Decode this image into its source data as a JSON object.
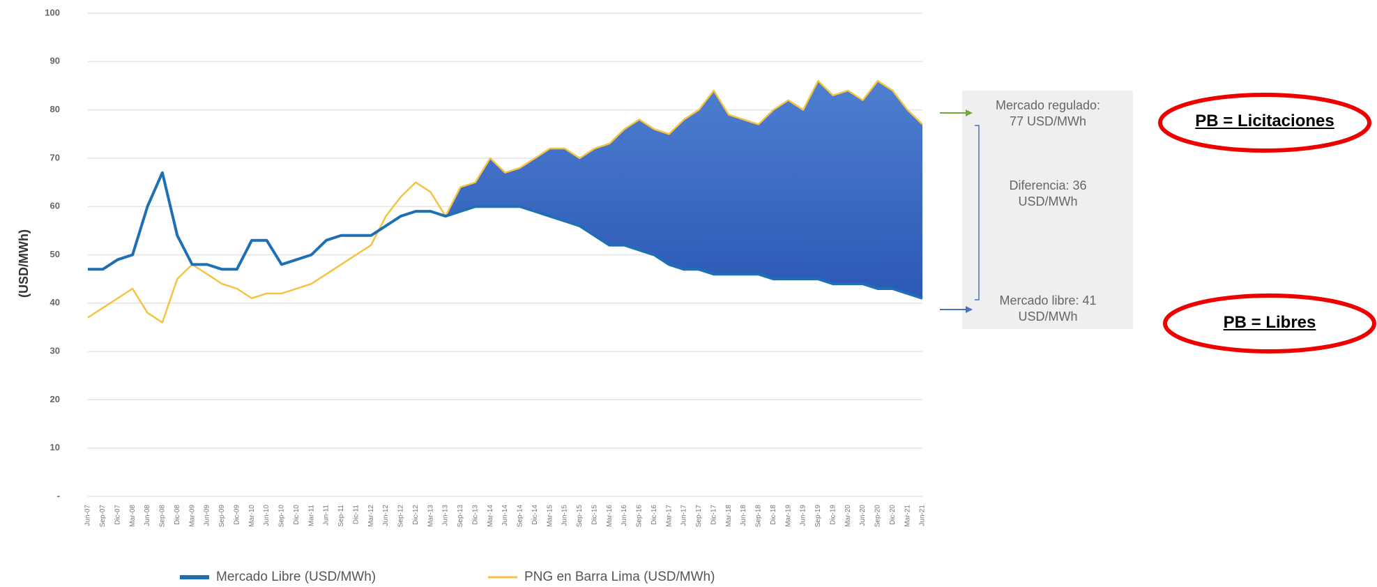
{
  "chart_data": {
    "type": "line",
    "y_label": "(USD/MWh)",
    "categories": [
      "Jun-07",
      "Sep-07",
      "Dic-07",
      "Mar-08",
      "Jun-08",
      "Sep-08",
      "Dic-08",
      "Mar-09",
      "Jun-09",
      "Sep-09",
      "Dic-09",
      "Mar-10",
      "Jun-10",
      "Sep-10",
      "Dic-10",
      "Mar-11",
      "Jun-11",
      "Sep-11",
      "Dic-11",
      "Mar-12",
      "Jun-12",
      "Sep-12",
      "Dic-12",
      "Mar-13",
      "Jun-13",
      "Sep-13",
      "Dic-13",
      "Mar-14",
      "Jun-14",
      "Sep-14",
      "Dic-14",
      "Mar-15",
      "Jun-15",
      "Sep-15",
      "Dic-15",
      "Mar-16",
      "Jun-16",
      "Sep-16",
      "Dic-16",
      "Mar-17",
      "Jun-17",
      "Sep-17",
      "Dic-17",
      "Mar-18",
      "Jun-18",
      "Sep-18",
      "Dic-18",
      "Mar-19",
      "Jun-19",
      "Sep-19",
      "Dic-19",
      "Mar-20",
      "Jun-20",
      "Sep-20",
      "Dic-20",
      "Mar-21",
      "Jun-21"
    ],
    "series": [
      {
        "name": "Mercado Libre (USD/MWh)",
        "color": "#1f6fb5",
        "values": [
          47,
          47,
          49,
          50,
          60,
          67,
          54,
          48,
          48,
          47,
          47,
          53,
          53,
          48,
          49,
          50,
          53,
          54,
          54,
          54,
          56,
          58,
          59,
          59,
          58,
          59,
          60,
          60,
          60,
          60,
          59,
          58,
          57,
          56,
          54,
          52,
          52,
          51,
          50,
          48,
          47,
          47,
          46,
          46,
          46,
          46,
          45,
          45,
          45,
          45,
          44,
          44,
          44,
          43,
          43,
          42,
          41
        ]
      },
      {
        "name": "PNG en Barra Lima (USD/MWh)",
        "color": "#f5c342",
        "values": [
          37,
          39,
          41,
          43,
          38,
          36,
          45,
          48,
          46,
          44,
          43,
          41,
          42,
          42,
          43,
          44,
          46,
          48,
          50,
          52,
          58,
          62,
          65,
          63,
          58,
          64,
          65,
          70,
          67,
          68,
          70,
          72,
          72,
          70,
          72,
          73,
          76,
          78,
          76,
          75,
          78,
          80,
          84,
          79,
          78,
          77,
          80,
          82,
          80,
          86,
          83,
          84,
          82,
          86,
          84,
          80,
          77
        ]
      }
    ],
    "area_color": "#3a6bc6",
    "ylim": [
      0,
      100
    ],
    "yticks": [
      {
        "value": 0,
        "label": "-"
      },
      10,
      20,
      30,
      40,
      50,
      60,
      70,
      80,
      90,
      100
    ],
    "grid": true,
    "legend": "bottom",
    "annotations": {
      "regulado": "Mercado regulado: 77 USD/MWh",
      "diferencia": "Diferencia: 36 USD/MWh",
      "libre": "Mercado libre: 41 USD/MWh",
      "pb_licitaciones": "PB = Licitaciones",
      "pb_libres": "PB = Libres"
    }
  }
}
